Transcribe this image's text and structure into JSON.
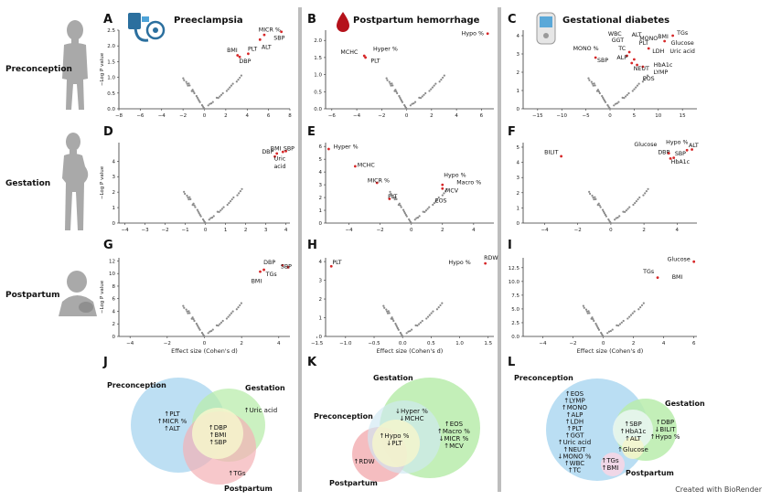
{
  "rows": {
    "preconception": "Preconception",
    "gestation": "Gestation",
    "postpartum": "Postpartum"
  },
  "columns": {
    "preeclampsia": "Preeclampsia",
    "pph": "Postpartum hemorrhage",
    "gdm": "Gestational diabetes"
  },
  "axes": {
    "ylabel": "−Log P value",
    "xlabel": "Effect size (Cohen's d)"
  },
  "credit": "Created with BioRender",
  "colors": {
    "point": "#8a8a8a",
    "significant": "#d62728",
    "divider": "#b9b9b9",
    "venn_pre": "#a9d4ef",
    "venn_ges": "#a9e69d",
    "venn_post": "#f2a3a8",
    "venn_center": "#f3f3c5"
  },
  "chart_data": [
    {
      "panel": "A",
      "type": "scatter",
      "xlim": [
        -8,
        8
      ],
      "ylim": [
        0,
        2.5
      ],
      "xticks": [
        "−8",
        "−6",
        "−4",
        "−2",
        "0",
        "2",
        "4",
        "6",
        "8"
      ],
      "yticks": [
        "0.0",
        "0.5",
        "1.0",
        "1.5",
        "2.0",
        "2.5"
      ],
      "labels": [
        {
          "text": "MICR %",
          "x": 6.1,
          "y": 2.45
        },
        {
          "text": "SBP",
          "x": 7.0,
          "y": 2.2
        },
        {
          "text": "ALT",
          "x": 5.8,
          "y": 1.9
        },
        {
          "text": "PLT",
          "x": 4.5,
          "y": 1.85
        },
        {
          "text": "BMI",
          "x": 2.6,
          "y": 1.8
        },
        {
          "text": "DBP",
          "x": 3.8,
          "y": 1.45
        }
      ],
      "sig": [
        {
          "x": 7.2,
          "y": 2.45
        },
        {
          "x": 5.6,
          "y": 2.35
        },
        {
          "x": 5.2,
          "y": 2.2
        },
        {
          "x": 4.1,
          "y": 1.75
        },
        {
          "x": 3.1,
          "y": 1.7
        },
        {
          "x": 3.3,
          "y": 1.65
        }
      ]
    },
    {
      "panel": "B",
      "type": "scatter",
      "xlim": [
        -6.5,
        7
      ],
      "ylim": [
        0,
        2.3
      ],
      "xticks": [
        "−6",
        "−4",
        "−2",
        "0",
        "2",
        "4",
        "6"
      ],
      "yticks": [
        "0.0",
        "0.5",
        "1.0",
        "1.5",
        "2.0"
      ],
      "labels": [
        {
          "text": "Hypo %",
          "x": 5.3,
          "y": 2.15
        },
        {
          "text": "MCHC",
          "x": -4.6,
          "y": 1.6
        },
        {
          "text": "Hyper %",
          "x": -1.7,
          "y": 1.7
        },
        {
          "text": "PLT",
          "x": -2.5,
          "y": 1.35
        }
      ],
      "sig": [
        {
          "x": 6.5,
          "y": 2.2
        },
        {
          "x": -3.4,
          "y": 1.55
        },
        {
          "x": -3.3,
          "y": 1.5
        }
      ]
    },
    {
      "panel": "C",
      "type": "scatter",
      "xlim": [
        -18,
        18
      ],
      "ylim": [
        0,
        4.3
      ],
      "xticks": [
        "−15",
        "−10",
        "−5",
        "0",
        "5",
        "10",
        "15"
      ],
      "yticks": [
        "0",
        "1",
        "2",
        "3",
        "4"
      ],
      "labels": [
        {
          "text": "TGs",
          "x": 15,
          "y": 4.05
        },
        {
          "text": "BMI",
          "x": 11,
          "y": 3.85
        },
        {
          "text": "WBC",
          "x": 1,
          "y": 4.0
        },
        {
          "text": "ALT",
          "x": 5.5,
          "y": 3.95
        },
        {
          "text": "MONO",
          "x": 8,
          "y": 3.75
        },
        {
          "text": "GGT",
          "x": 1.6,
          "y": 3.65
        },
        {
          "text": "PLT",
          "x": 7,
          "y": 3.5
        },
        {
          "text": "Glucose",
          "x": 15,
          "y": 3.5
        },
        {
          "text": "MONO %",
          "x": -5,
          "y": 3.2
        },
        {
          "text": "TC",
          "x": 2.5,
          "y": 3.2
        },
        {
          "text": "LDH",
          "x": 10,
          "y": 3.05
        },
        {
          "text": "Uric acid",
          "x": 15,
          "y": 3.05
        },
        {
          "text": "SBP",
          "x": -1.5,
          "y": 2.55
        },
        {
          "text": "ALP",
          "x": 2.5,
          "y": 2.7
        },
        {
          "text": "HbA1c",
          "x": 11,
          "y": 2.3
        },
        {
          "text": "NEUT",
          "x": 6.5,
          "y": 2.1
        },
        {
          "text": "LYMP",
          "x": 10.5,
          "y": 1.9
        },
        {
          "text": "EOS",
          "x": 8,
          "y": 1.55
        }
      ],
      "sig": [
        {
          "x": 13,
          "y": 4.0
        },
        {
          "x": 11.3,
          "y": 3.7
        },
        {
          "x": 8,
          "y": 3.3
        },
        {
          "x": 4,
          "y": 3.1
        },
        {
          "x": 3.5,
          "y": 2.9
        },
        {
          "x": -3,
          "y": 2.8
        },
        {
          "x": 4.5,
          "y": 2.5
        },
        {
          "x": 5.6,
          "y": 2.4
        },
        {
          "x": 6.8,
          "y": 2.3
        },
        {
          "x": 5,
          "y": 2.7
        }
      ]
    },
    {
      "panel": "D",
      "type": "scatter",
      "xlim": [
        -4.3,
        4.2
      ],
      "ylim": [
        0,
        5.2
      ],
      "xticks": [
        "−4",
        "−3",
        "−2",
        "−1",
        "0",
        "1",
        "2",
        "3",
        "4"
      ],
      "yticks": [
        "0",
        "1",
        "2",
        "3",
        "4"
      ],
      "labels": [
        {
          "text": "BMI",
          "x": 3.5,
          "y": 4.7
        },
        {
          "text": "SBP",
          "x": 4.15,
          "y": 4.7
        },
        {
          "text": "DBP",
          "x": 3.1,
          "y": 4.5
        },
        {
          "text": "Uric",
          "x": 3.7,
          "y": 4.05
        },
        {
          "text": "acid",
          "x": 3.7,
          "y": 3.55
        }
      ],
      "sig": [
        {
          "x": 3.55,
          "y": 4.5
        },
        {
          "x": 3.85,
          "y": 4.6
        },
        {
          "x": 4.0,
          "y": 4.65
        },
        {
          "x": 3.45,
          "y": 4.3
        }
      ]
    },
    {
      "panel": "E",
      "type": "scatter",
      "xlim": [
        -5.5,
        5.3
      ],
      "ylim": [
        0,
        6.3
      ],
      "xticks": [
        "−4",
        "−2",
        "0",
        "2",
        "4"
      ],
      "yticks": [
        "0",
        "1",
        "2",
        "3",
        "4",
        "5",
        "6"
      ],
      "labels": [
        {
          "text": "Hyper %",
          "x": -4.2,
          "y": 5.85
        },
        {
          "text": "MCHC",
          "x": -2.9,
          "y": 4.4
        },
        {
          "text": "MICR %",
          "x": -2.1,
          "y": 3.2
        },
        {
          "text": "Hypo %",
          "x": 2.8,
          "y": 3.6
        },
        {
          "text": "Macro %",
          "x": 3.7,
          "y": 3.05
        },
        {
          "text": "MCV",
          "x": 2.6,
          "y": 2.4
        },
        {
          "text": "PLT",
          "x": -1.2,
          "y": 1.95
        },
        {
          "text": "EOS",
          "x": 1.9,
          "y": 1.6
        }
      ],
      "sig": [
        {
          "x": -5.3,
          "y": 5.8
        },
        {
          "x": -3.6,
          "y": 4.45
        },
        {
          "x": -2.2,
          "y": 3.15
        },
        {
          "x": 2.0,
          "y": 3.0
        },
        {
          "x": 2.0,
          "y": 2.7
        },
        {
          "x": -1.4,
          "y": 1.9
        }
      ]
    },
    {
      "panel": "F",
      "type": "scatter",
      "xlim": [
        -5.3,
        5.2
      ],
      "ylim": [
        0,
        5.3
      ],
      "xticks": [
        "−4",
        "−2",
        "0",
        "2",
        "4"
      ],
      "yticks": [
        "0",
        "1",
        "2",
        "3",
        "4",
        "5"
      ],
      "labels": [
        {
          "text": "BILIT",
          "x": -3.6,
          "y": 4.55
        },
        {
          "text": "Glucose",
          "x": 2.1,
          "y": 5.05
        },
        {
          "text": "Hypo %",
          "x": 4.0,
          "y": 5.2
        },
        {
          "text": "ALT",
          "x": 5.0,
          "y": 5.0
        },
        {
          "text": "DBP",
          "x": 3.2,
          "y": 4.55
        },
        {
          "text": "SBP",
          "x": 4.2,
          "y": 4.45
        },
        {
          "text": "HbA1c",
          "x": 4.2,
          "y": 3.9
        }
      ],
      "sig": [
        {
          "x": -3.0,
          "y": 4.4
        },
        {
          "x": 4.9,
          "y": 4.85
        },
        {
          "x": 4.6,
          "y": 4.8
        },
        {
          "x": 3.5,
          "y": 4.6
        },
        {
          "x": 3.8,
          "y": 4.3
        },
        {
          "x": 3.6,
          "y": 4.25
        }
      ]
    },
    {
      "panel": "G",
      "type": "scatter",
      "xlim": [
        -4.6,
        4.6
      ],
      "ylim": [
        0,
        12.5
      ],
      "xticks": [
        "−4",
        "−2",
        "0",
        "2",
        "4"
      ],
      "yticks": [
        "0",
        "2",
        "4",
        "6",
        "8",
        "10",
        "12"
      ],
      "labels": [
        {
          "text": "DBP",
          "x": 3.5,
          "y": 11.5
        },
        {
          "text": "SBP",
          "x": 4.4,
          "y": 10.8
        },
        {
          "text": "TGs",
          "x": 3.6,
          "y": 9.6
        },
        {
          "text": "BMI",
          "x": 2.8,
          "y": 8.5
        }
      ],
      "sig": [
        {
          "x": 4.2,
          "y": 11.3
        },
        {
          "x": 4.5,
          "y": 11.0
        },
        {
          "x": 3.0,
          "y": 10.3
        },
        {
          "x": 3.2,
          "y": 10.6
        }
      ]
    },
    {
      "panel": "H",
      "type": "scatter",
      "xlim": [
        -1.35,
        1.6
      ],
      "ylim": [
        0,
        4.2
      ],
      "xticks": [
        "−1.5",
        "−1.0",
        "−0.5",
        "0.0",
        "0.5",
        "1.0",
        "1.5"
      ],
      "yticks": [
        "0",
        "1",
        "2",
        "3",
        "4"
      ],
      "labels": [
        {
          "text": "PLT",
          "x": -1.15,
          "y": 3.85
        },
        {
          "text": "Hypo %",
          "x": 1.0,
          "y": 3.85
        },
        {
          "text": "RDW",
          "x": 1.55,
          "y": 4.1
        }
      ],
      "sig": [
        {
          "x": -1.25,
          "y": 3.75
        },
        {
          "x": 1.45,
          "y": 3.9
        }
      ]
    },
    {
      "panel": "I",
      "type": "scatter",
      "xlim": [
        -5.3,
        6.2
      ],
      "ylim": [
        0,
        14.3
      ],
      "xticks": [
        "−4",
        "−2",
        "0",
        "2",
        "4",
        "6"
      ],
      "yticks": [
        "0.0",
        "2.5",
        "5.0",
        "7.5",
        "10.0",
        "12.5"
      ],
      "labels": [
        {
          "text": "Glucose",
          "x": 5.0,
          "y": 13.7
        },
        {
          "text": "TGs",
          "x": 3.0,
          "y": 11.5
        },
        {
          "text": "BMI",
          "x": 4.9,
          "y": 10.5
        }
      ],
      "sig": [
        {
          "x": 6.0,
          "y": 13.6
        },
        {
          "x": 3.6,
          "y": 10.7
        }
      ]
    }
  ],
  "venn": [
    {
      "panel": "J",
      "pre_title": "Preconception",
      "ges_title": "Gestation",
      "post_title": "Postpartum",
      "pre_only": [
        "↑PLT",
        "↑MICR %",
        "↑ALT"
      ],
      "ges_only": [
        "↑Uric acid"
      ],
      "center": [
        "↑DBP",
        "↑BMI",
        "↑SBP"
      ],
      "post_only": [
        "↑TGs"
      ]
    },
    {
      "panel": "K",
      "pre_title": "Preconception",
      "ges_title": "Gestation",
      "post_title": "Postpartum",
      "pre_ges": [
        "↓Hyper %",
        "↓MCHC"
      ],
      "center": [
        "↑Hypo %",
        "↓PLT"
      ],
      "ges_only": [
        "↑EOS",
        "↑Macro %",
        "↓MICR %",
        "↑MCV"
      ],
      "post_only": [
        "↑RDW"
      ]
    },
    {
      "panel": "L",
      "pre_title": "Preconception",
      "ges_title": "Gestation",
      "post_title": "Postpartum",
      "pre_only": [
        "↑EOS",
        "↑LYMP",
        "↑MONO",
        "↑ALP",
        "↑LDH",
        "↑PLT",
        "↑GGT",
        "↑Uric acid",
        "↑NEUT",
        "↓MONO %",
        "↑WBC",
        "↑TC"
      ],
      "pre_ges": [
        "↑SBP",
        "↑HbA1c",
        "↑ALT"
      ],
      "center": [
        "↑Glucose"
      ],
      "pre_post": [
        "↑TGs",
        "↑BMI"
      ],
      "ges_only": [
        "↑DBP",
        "↓BILIT",
        "↑Hypo %"
      ]
    }
  ]
}
